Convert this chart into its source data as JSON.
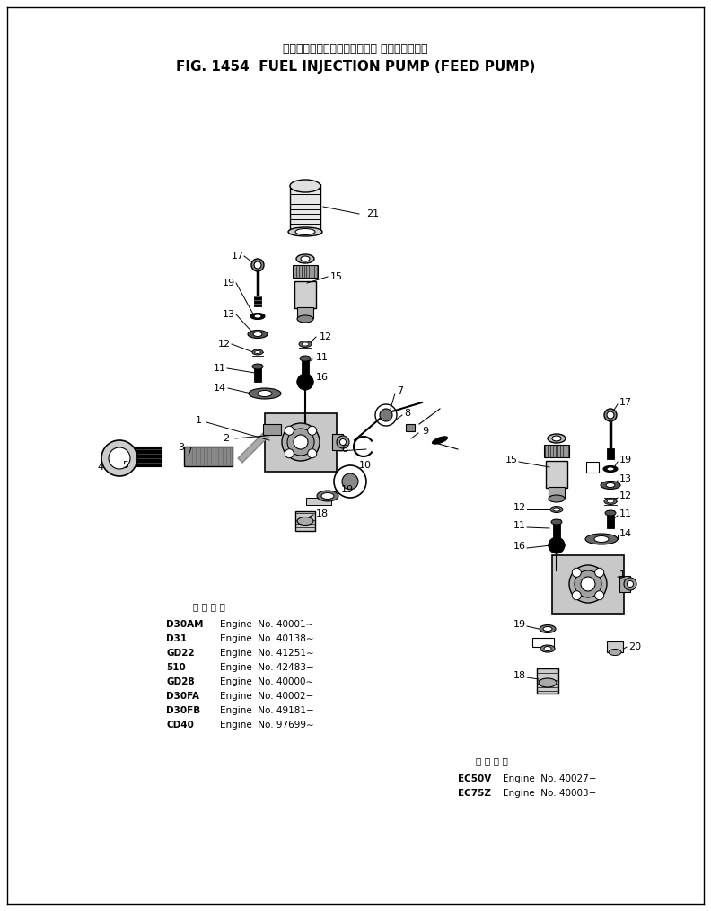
{
  "title_japanese": "フェルインジェクションポンプ フィードポンプ",
  "title_english": "FIG. 1454  FUEL INJECTION PUMP (FEED PUMP)",
  "bg_color": "#ffffff",
  "fig_width": 7.92,
  "fig_height": 10.14,
  "dpi": 100,
  "left_table_header": "使 用 号 機",
  "left_table": [
    [
      "D30AM",
      "Engine  No. 40001∼"
    ],
    [
      "D31",
      "Engine  No. 40138∼"
    ],
    [
      "GD22",
      "Engine  No. 41251∼"
    ],
    [
      "510",
      "Engine  No. 42483−"
    ],
    [
      "GD28",
      "Engine  No. 40000∼"
    ],
    [
      "D30FA",
      "Engine  No. 40002−"
    ],
    [
      "D30FB",
      "Engine  No. 49181−"
    ],
    [
      "CD40",
      "Engine  No. 97699∼"
    ]
  ],
  "right_table_header": "使 用 号 機",
  "right_table": [
    [
      "EC50V",
      "Engine  No. 40027−"
    ],
    [
      "EC75Z",
      "Engine  No. 40003−"
    ]
  ]
}
